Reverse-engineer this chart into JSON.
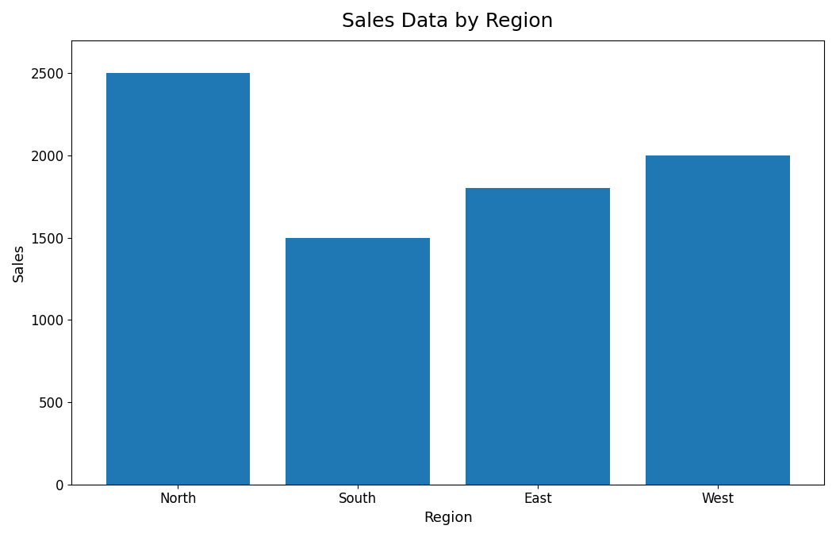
{
  "categories": [
    "North",
    "South",
    "East",
    "West"
  ],
  "values": [
    2500,
    1500,
    1800,
    2000
  ],
  "bar_color": "#1f77b4",
  "title": "Sales Data by Region",
  "xlabel": "Region",
  "ylabel": "Sales",
  "ylim": [
    0,
    2700
  ],
  "title_fontsize": 18,
  "label_fontsize": 13,
  "tick_fontsize": 12,
  "bar_width": 0.8,
  "background_color": "#ffffff"
}
